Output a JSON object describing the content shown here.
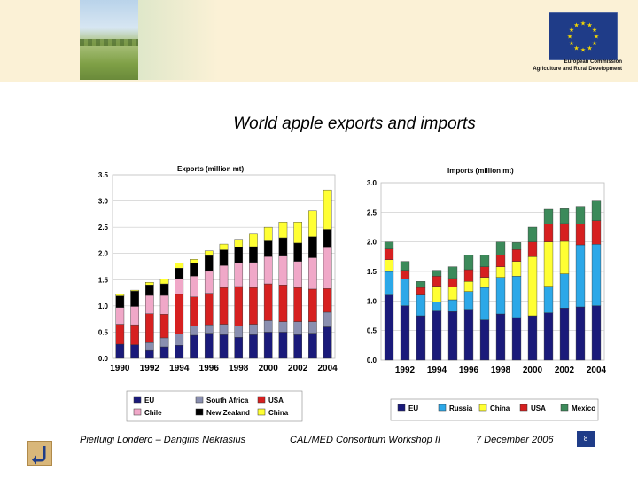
{
  "header": {
    "eu_caption_line1": "European Commission",
    "eu_caption_line2": "Agriculture and Rural Development",
    "eu_flag_color": "#1f3c88",
    "eu_star_color": "#f5d800"
  },
  "title": "World apple exports and imports",
  "footer": {
    "authors": "Pierluigi Londero – Dangiris Nekrasius",
    "event": "CAL/MED Consortium Workshop II",
    "date": "7 December 2006",
    "page": "8"
  },
  "chart_data": [
    {
      "type": "bar",
      "stacked": true,
      "title": "Exports (million mt)",
      "ylim": [
        0,
        3.5
      ],
      "yticks": [
        "0.0",
        "0.5",
        "1.0",
        "1.5",
        "2.0",
        "2.5",
        "3.0",
        "3.5"
      ],
      "categories": [
        "1990",
        "1991",
        "1992",
        "1993",
        "1994",
        "1995",
        "1996",
        "1997",
        "1998",
        "1999",
        "2000",
        "2001",
        "2002",
        "2003",
        "2004"
      ],
      "xtick_labels": [
        "1990",
        "1992",
        "1994",
        "1996",
        "1998",
        "2000",
        "2002",
        "2004"
      ],
      "legend_placement": "bottom",
      "series": [
        {
          "name": "EU",
          "color": "#1a1a7a",
          "values": [
            0.27,
            0.26,
            0.15,
            0.22,
            0.25,
            0.44,
            0.48,
            0.45,
            0.4,
            0.45,
            0.5,
            0.5,
            0.45,
            0.48,
            0.6
          ]
        },
        {
          "name": "South Africa",
          "color": "#8a8fb0",
          "values": [
            0.0,
            0.0,
            0.15,
            0.17,
            0.22,
            0.18,
            0.16,
            0.2,
            0.22,
            0.2,
            0.22,
            0.2,
            0.25,
            0.22,
            0.28
          ]
        },
        {
          "name": "USA",
          "color": "#d62020",
          "values": [
            0.38,
            0.38,
            0.55,
            0.45,
            0.75,
            0.55,
            0.6,
            0.7,
            0.75,
            0.7,
            0.7,
            0.7,
            0.65,
            0.62,
            0.45
          ]
        },
        {
          "name": "Chile",
          "color": "#f0a8c8",
          "values": [
            0.32,
            0.35,
            0.35,
            0.36,
            0.3,
            0.4,
            0.42,
            0.42,
            0.45,
            0.48,
            0.52,
            0.55,
            0.5,
            0.6,
            0.78
          ]
        },
        {
          "name": "New Zealand",
          "color": "#000000",
          "values": [
            0.22,
            0.29,
            0.2,
            0.22,
            0.2,
            0.25,
            0.3,
            0.3,
            0.3,
            0.3,
            0.3,
            0.35,
            0.35,
            0.4,
            0.35
          ]
        },
        {
          "name": "China",
          "color": "#ffff33",
          "values": [
            0.03,
            0.02,
            0.05,
            0.09,
            0.1,
            0.07,
            0.09,
            0.11,
            0.15,
            0.24,
            0.26,
            0.3,
            0.4,
            0.49,
            0.75
          ]
        }
      ]
    },
    {
      "type": "bar",
      "stacked": true,
      "title": "Imports (million mt)",
      "ylim": [
        0,
        3.0
      ],
      "yticks": [
        "0.0",
        "0.5",
        "1.0",
        "1.5",
        "2.0",
        "2.5",
        "3.0"
      ],
      "categories": [
        "1991",
        "1992",
        "1993",
        "1994",
        "1995",
        "1996",
        "1997",
        "1998",
        "1999",
        "2000",
        "2001",
        "2002",
        "2003",
        "2004"
      ],
      "xtick_labels": [
        "1992",
        "1994",
        "1996",
        "1998",
        "2000",
        "2002",
        "2004"
      ],
      "legend_placement": "bottom",
      "series": [
        {
          "name": "EU",
          "color": "#1a1a7a",
          "values": [
            1.1,
            0.92,
            0.75,
            0.83,
            0.82,
            0.86,
            0.68,
            0.78,
            0.72,
            0.75,
            0.8,
            0.88,
            0.9,
            0.92
          ]
        },
        {
          "name": "Russia",
          "color": "#2ca8e8",
          "values": [
            0.4,
            0.45,
            0.35,
            0.15,
            0.2,
            0.3,
            0.55,
            0.62,
            0.7,
            0.0,
            0.45,
            0.58,
            1.05,
            1.04
          ]
        },
        {
          "name": "China",
          "color": "#ffff33",
          "values": [
            0.2,
            0.0,
            0.0,
            0.27,
            0.22,
            0.17,
            0.17,
            0.18,
            0.25,
            1.0,
            0.75,
            0.55,
            0.0,
            0.0
          ]
        },
        {
          "name": "USA",
          "color": "#d62020",
          "values": [
            0.18,
            0.15,
            0.13,
            0.17,
            0.14,
            0.2,
            0.18,
            0.2,
            0.2,
            0.25,
            0.3,
            0.3,
            0.35,
            0.4
          ]
        },
        {
          "name": "Mexico",
          "color": "#3c8a5a",
          "values": [
            0.12,
            0.15,
            0.1,
            0.1,
            0.2,
            0.25,
            0.2,
            0.22,
            0.12,
            0.25,
            0.25,
            0.25,
            0.3,
            0.33
          ]
        }
      ]
    }
  ]
}
